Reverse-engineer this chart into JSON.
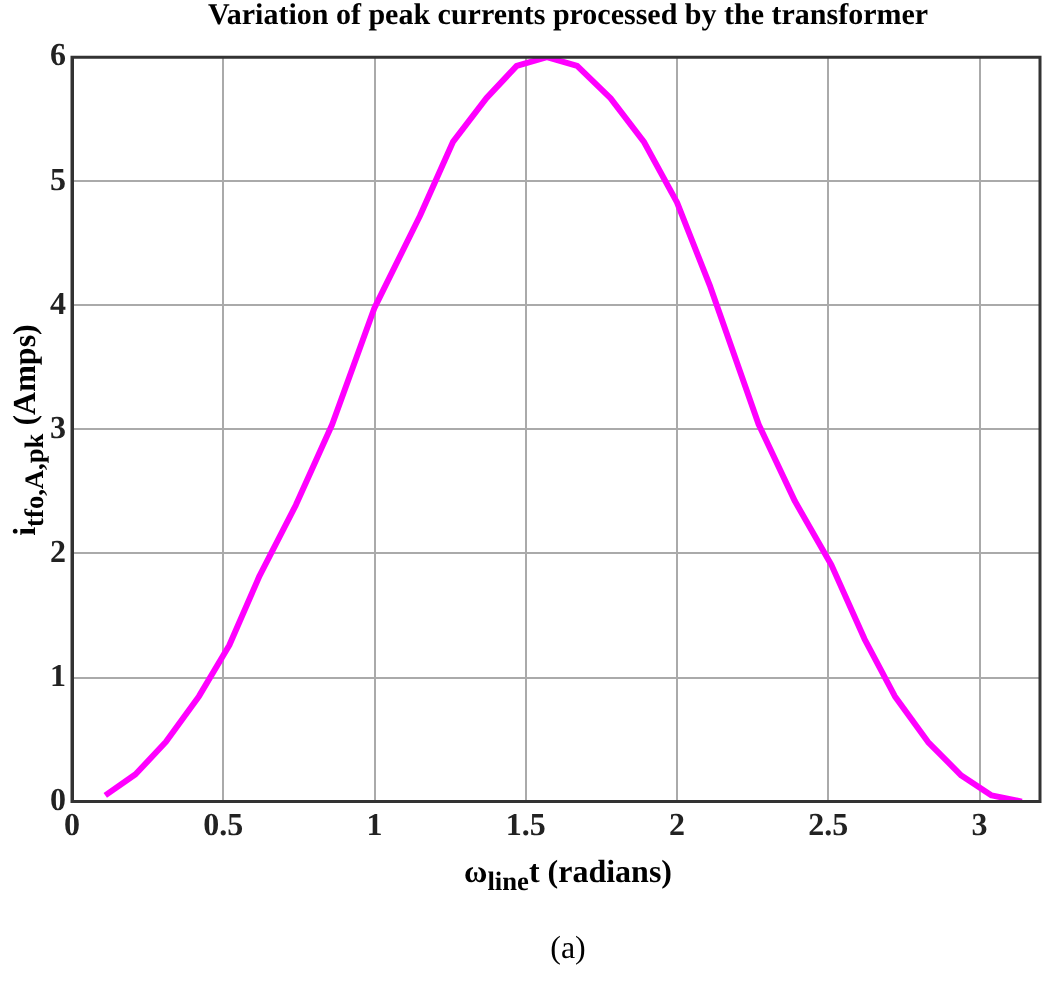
{
  "chart_data": {
    "type": "line",
    "title": "Variation of peak currents processed by the transformer",
    "xlabel": "ω$_{line}$t (radians)",
    "ylabel": "i$_{tfo,A,pk}$ (Amps)",
    "annotations": [
      "(a)"
    ],
    "series": [
      {
        "color": "#ff00ff",
        "x": [
          0.11,
          0.21,
          0.31,
          0.42,
          0.52,
          0.62,
          0.74,
          0.86,
          1.0,
          1.15,
          1.26,
          1.37,
          1.47,
          1.57,
          1.67,
          1.78,
          1.89,
          2.0,
          2.11,
          2.27,
          2.39,
          2.51,
          2.62,
          2.72,
          2.83,
          2.94,
          3.04,
          3.14
        ],
        "values": [
          0.05,
          0.22,
          0.48,
          0.85,
          1.26,
          1.82,
          2.39,
          3.04,
          3.98,
          4.72,
          5.32,
          5.67,
          5.93,
          6.0,
          5.93,
          5.67,
          5.32,
          4.83,
          4.15,
          3.04,
          2.42,
          1.91,
          1.31,
          0.85,
          0.48,
          0.21,
          0.05,
          0.0
        ]
      }
    ],
    "xlim": [
      0,
      3.2
    ],
    "xticks": [
      0,
      0.5,
      1,
      1.5,
      2,
      2.5,
      3
    ],
    "ylim": [
      0,
      6
    ],
    "yticks": [
      0,
      1,
      2,
      3,
      4,
      5,
      6
    ],
    "grid": true,
    "legend": false,
    "marker": "none",
    "line_style": "solid"
  }
}
